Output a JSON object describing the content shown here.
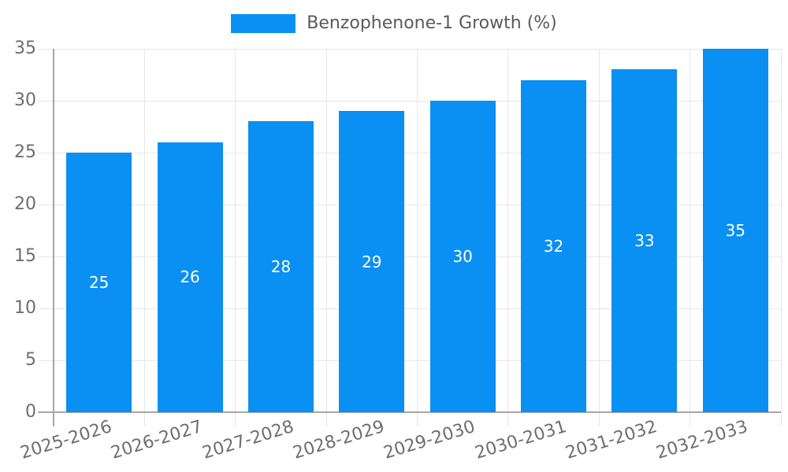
{
  "legend": {
    "label": "Benzophenone-1 Growth (%)"
  },
  "colors": {
    "bar": "#0a8ff2",
    "grid": "#e7e7e7",
    "axis": "#a6a6a6",
    "tick_text": "#6e6e6e",
    "legend_text": "#5a5a5a",
    "bar_label": "#ffffff"
  },
  "chart_data": {
    "type": "bar",
    "title": "Benzophenone-1 Growth (%)",
    "categories": [
      "2025-2026",
      "2026-2027",
      "2027-2028",
      "2028-2029",
      "2029-2030",
      "2030-2031",
      "2031-2032",
      "2032-2033"
    ],
    "values": [
      25,
      26,
      28,
      29,
      30,
      32,
      33,
      35
    ],
    "xlabel": "",
    "ylabel": "",
    "ylim": [
      0,
      35
    ],
    "yticks": [
      0,
      5,
      10,
      15,
      20,
      25,
      30,
      35
    ],
    "grid": true,
    "legend_position": "top-center",
    "bar_value_labels": "inside-center"
  }
}
